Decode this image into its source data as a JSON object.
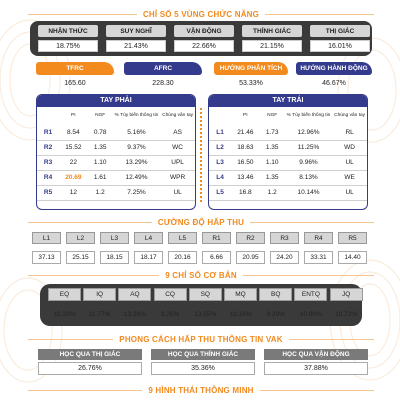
{
  "title_chi_so_5_vung": "CHỈ SỐ 5 VÙNG CHỨC NĂNG",
  "vung": [
    {
      "label": "NHẬN THỨC",
      "value": "18.75%"
    },
    {
      "label": "SUY NGHĨ",
      "value": "21.43%"
    },
    {
      "label": "VẬN ĐỘNG",
      "value": "22.66%"
    },
    {
      "label": "THÍNH GIÁC",
      "value": "21.15%"
    },
    {
      "label": "THỊ GIÁC",
      "value": "16.01%"
    }
  ],
  "tfrc": {
    "label": "TFRC",
    "value": "165.60"
  },
  "afrc": {
    "label": "AFRC",
    "value": "228.30"
  },
  "huong_phan_tich": {
    "label": "HƯỚNG PHÂN TÍCH",
    "value": "53.33%"
  },
  "huong_hanh_dong": {
    "label": "HƯỚNG HÀNH ĐỘNG",
    "value": "46.67%"
  },
  "tay_phai": {
    "title": "TAY PHẢI",
    "cols": [
      "",
      "PI",
      "NGF",
      "% Tùy biến thông tin",
      "Chủng vân tay"
    ],
    "rows": [
      [
        "R1",
        "8.54",
        "0.78",
        "5.16%",
        "AS"
      ],
      [
        "R2",
        "15.52",
        "1.35",
        "9.37%",
        "WC"
      ],
      [
        "R3",
        "22",
        "1.10",
        "13.29%",
        "UPL"
      ],
      [
        "R4",
        "20.69",
        "1.61",
        "12.49%",
        "WPR"
      ],
      [
        "R5",
        "12",
        "1.2",
        "7.25%",
        "UL"
      ]
    ]
  },
  "tay_trai": {
    "title": "TAY TRÁI",
    "cols": [
      "",
      "PI",
      "NGF",
      "% Tùy biến thông tin",
      "Chủng vân tay"
    ],
    "rows": [
      [
        "L1",
        "21.46",
        "1.73",
        "12.96%",
        "RL"
      ],
      [
        "L2",
        "18.63",
        "1.35",
        "11.25%",
        "WD"
      ],
      [
        "L3",
        "16.50",
        "1.10",
        "9.96%",
        "UL"
      ],
      [
        "L4",
        "13.46",
        "1.35",
        "8.13%",
        "WE"
      ],
      [
        "L5",
        "16.8",
        "1.2",
        "10.14%",
        "UL"
      ]
    ]
  },
  "title_cuong_do": "CƯỜNG ĐỘ HẤP THU",
  "cuong_do": [
    {
      "label": "L1",
      "value": "37.13"
    },
    {
      "label": "L2",
      "value": "25.15"
    },
    {
      "label": "L3",
      "value": "18.15"
    },
    {
      "label": "L4",
      "value": "18.17"
    },
    {
      "label": "L5",
      "value": "20.16"
    },
    {
      "label": "R1",
      "value": "6.66"
    },
    {
      "label": "R2",
      "value": "20.95"
    },
    {
      "label": "R3",
      "value": "24.20"
    },
    {
      "label": "R4",
      "value": "33.31"
    },
    {
      "label": "R5",
      "value": "14.40"
    }
  ],
  "title_9_chi_so": "9 CHỈ SỐ CƠ BẢN",
  "chi_so": [
    {
      "label": "EQ",
      "value": "10.33%"
    },
    {
      "label": "IQ",
      "value": "11.77%"
    },
    {
      "label": "AQ",
      "value": "13.26%"
    },
    {
      "label": "CQ",
      "value": "9.25%"
    },
    {
      "label": "SQ",
      "value": "13.55%"
    },
    {
      "label": "MQ",
      "value": "10.16%"
    },
    {
      "label": "BQ",
      "value": "9.39%"
    },
    {
      "label": "ENTQ",
      "value": "10.90%"
    },
    {
      "label": "JQ",
      "value": "10.72%"
    }
  ],
  "title_phong_cach": "PHONG CÁCH HẤP THU THÔNG TIN VAK",
  "vak": [
    {
      "label": "HỌC QUA THỊ GIÁC",
      "value": "26.76%"
    },
    {
      "label": "HỌC QUA THÍNH GIÁC",
      "value": "35.36%"
    },
    {
      "label": "HỌC QUA VẬN ĐỘNG",
      "value": "37.88%"
    }
  ],
  "title_9_hinh_thai": "9 HÌNH THÁI THÔNG MINH",
  "colors": {
    "orange": "#f28a1e",
    "navy": "#343a8c",
    "grey_box": "#7a7a7a",
    "label_grey": "#d6d6d6"
  }
}
